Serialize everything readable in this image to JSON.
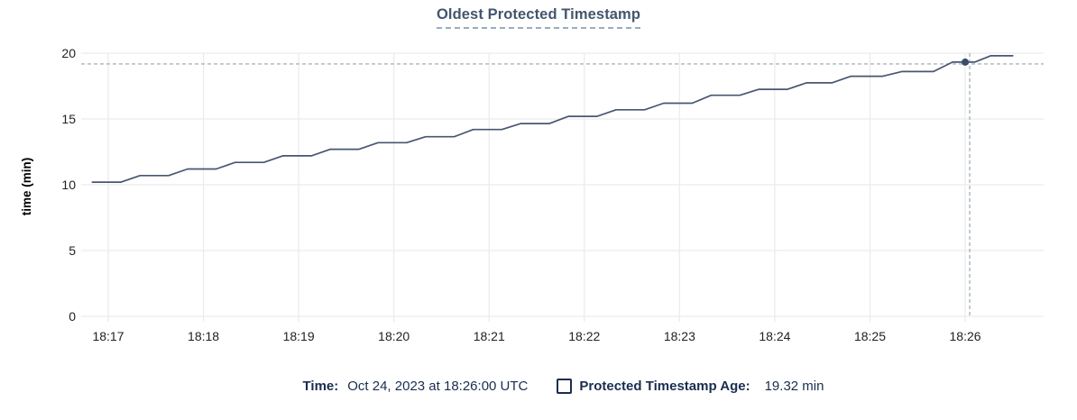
{
  "title": "Oldest Protected Timestamp",
  "colors": {
    "background": "#ffffff",
    "title": "#43556e",
    "title_underline": "#9aadbb",
    "series_line": "#475770",
    "data_point": "#3a4c68",
    "crosshair": "#a6b6c1",
    "gridline": "#ececec",
    "tick_label": "#222222",
    "axis_label": "#000000",
    "legend_text": "#1a2d50"
  },
  "chart_data": {
    "type": "line",
    "title": "Oldest Protected Timestamp",
    "xlabel": "",
    "ylabel": "time (min)",
    "ylim": [
      0,
      20
    ],
    "yticks": [
      0,
      5,
      10,
      15,
      20
    ],
    "x_tick_labels": [
      "18:17",
      "18:18",
      "18:19",
      "18:20",
      "18:21",
      "18:22",
      "18:23",
      "18:24",
      "18:25",
      "18:26"
    ],
    "x_tick_interval_seconds": 60,
    "t_reference": "seconds after 18:17:00",
    "grid": true,
    "legend_position": "bottom",
    "series": [
      {
        "name": "Protected Timestamp Age",
        "unit": "min",
        "points": [
          [
            -10,
            10.2
          ],
          [
            8,
            10.2
          ],
          [
            20,
            10.7
          ],
          [
            38,
            10.7
          ],
          [
            50,
            11.2
          ],
          [
            68,
            11.2
          ],
          [
            80,
            11.7
          ],
          [
            98,
            11.7
          ],
          [
            110,
            12.2
          ],
          [
            128,
            12.2
          ],
          [
            140,
            12.7
          ],
          [
            158,
            12.7
          ],
          [
            170,
            13.2
          ],
          [
            188,
            13.2
          ],
          [
            200,
            13.65
          ],
          [
            218,
            13.65
          ],
          [
            230,
            14.2
          ],
          [
            248,
            14.2
          ],
          [
            260,
            14.65
          ],
          [
            278,
            14.65
          ],
          [
            290,
            15.2
          ],
          [
            308,
            15.2
          ],
          [
            320,
            15.7
          ],
          [
            338,
            15.7
          ],
          [
            350,
            16.2
          ],
          [
            368,
            16.2
          ],
          [
            380,
            16.8
          ],
          [
            398,
            16.8
          ],
          [
            410,
            17.25
          ],
          [
            428,
            17.25
          ],
          [
            440,
            17.75
          ],
          [
            456,
            17.75
          ],
          [
            468,
            18.25
          ],
          [
            488,
            18.25
          ],
          [
            500,
            18.6
          ],
          [
            520,
            18.6
          ],
          [
            532,
            19.32
          ],
          [
            546,
            19.32
          ],
          [
            556,
            19.8
          ],
          [
            570,
            19.8
          ]
        ]
      }
    ],
    "highlight_point": {
      "t_seconds": 540,
      "x_label": "18:26",
      "value": 19.32
    }
  },
  "legend": {
    "time_label": "Time:",
    "time_value": "Oct 24, 2023 at 18:26:00 UTC",
    "metric_label": "Protected Timestamp Age:",
    "metric_value": "19.32 min",
    "checkbox_checked": false
  }
}
